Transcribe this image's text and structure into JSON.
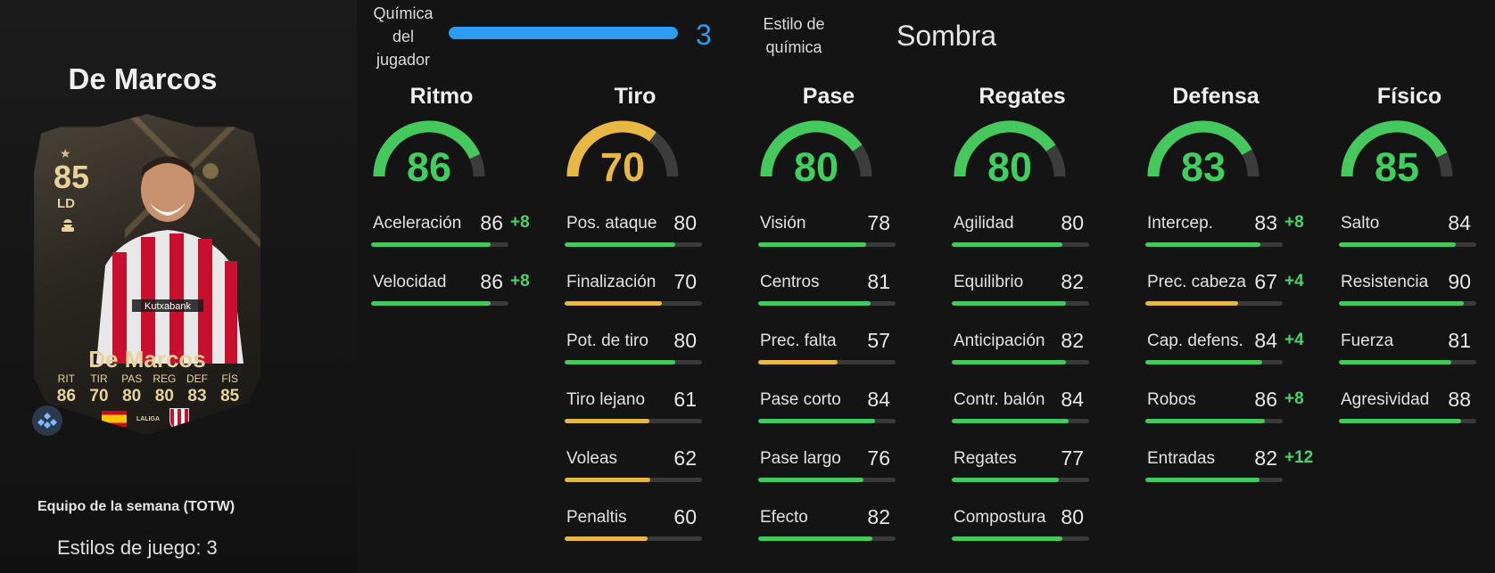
{
  "player": {
    "title": "De Marcos",
    "card": {
      "rating": "85",
      "position": "LD",
      "name": "De Marcos",
      "stat_labels": [
        "RIT",
        "TIR",
        "PAS",
        "REG",
        "DEF",
        "FÍS"
      ],
      "stat_values": [
        "86",
        "70",
        "80",
        "80",
        "83",
        "85"
      ],
      "league": "LALIGA"
    },
    "team": "Equipo de la semana (TOTW)",
    "playstyles": "Estilos de juego: 3"
  },
  "chemistry": {
    "label": "Química del jugador",
    "value": "3",
    "fraction": 1.0,
    "style_label": "Estilo de química",
    "style_value": "Sombra"
  },
  "colors": {
    "green": "#45c95c",
    "yellow": "#e7b944",
    "blue": "#2e9cf2"
  },
  "columns": [
    {
      "title": "Ritmo",
      "rating": "86",
      "tone": "green",
      "stats": [
        {
          "name": "Aceleración",
          "value": "86",
          "boost": "+8",
          "tone": "green"
        },
        {
          "name": "Velocidad",
          "value": "86",
          "boost": "+8",
          "tone": "green"
        }
      ]
    },
    {
      "title": "Tiro",
      "rating": "70",
      "tone": "yellow",
      "stats": [
        {
          "name": "Pos. ataque",
          "value": "80",
          "boost": "",
          "tone": "green"
        },
        {
          "name": "Finalización",
          "value": "70",
          "boost": "",
          "tone": "yellow"
        },
        {
          "name": "Pot. de tiro",
          "value": "80",
          "boost": "",
          "tone": "green"
        },
        {
          "name": "Tiro lejano",
          "value": "61",
          "boost": "",
          "tone": "yellow"
        },
        {
          "name": "Voleas",
          "value": "62",
          "boost": "",
          "tone": "yellow"
        },
        {
          "name": "Penaltis",
          "value": "60",
          "boost": "",
          "tone": "yellow"
        }
      ]
    },
    {
      "title": "Pase",
      "rating": "80",
      "tone": "green",
      "stats": [
        {
          "name": "Visión",
          "value": "78",
          "boost": "",
          "tone": "green"
        },
        {
          "name": "Centros",
          "value": "81",
          "boost": "",
          "tone": "green"
        },
        {
          "name": "Prec. falta",
          "value": "57",
          "boost": "",
          "tone": "yellow"
        },
        {
          "name": "Pase corto",
          "value": "84",
          "boost": "",
          "tone": "green"
        },
        {
          "name": "Pase largo",
          "value": "76",
          "boost": "",
          "tone": "green"
        },
        {
          "name": "Efecto",
          "value": "82",
          "boost": "",
          "tone": "green"
        }
      ]
    },
    {
      "title": "Regates",
      "rating": "80",
      "tone": "green",
      "stats": [
        {
          "name": "Agilidad",
          "value": "80",
          "boost": "",
          "tone": "green"
        },
        {
          "name": "Equilibrio",
          "value": "82",
          "boost": "",
          "tone": "green"
        },
        {
          "name": "Anticipación",
          "value": "82",
          "boost": "",
          "tone": "green"
        },
        {
          "name": "Contr. balón",
          "value": "84",
          "boost": "",
          "tone": "green"
        },
        {
          "name": "Regates",
          "value": "77",
          "boost": "",
          "tone": "green"
        },
        {
          "name": "Compostura",
          "value": "80",
          "boost": "",
          "tone": "green"
        }
      ]
    },
    {
      "title": "Defensa",
      "rating": "83",
      "tone": "green",
      "stats": [
        {
          "name": "Intercep.",
          "value": "83",
          "boost": "+8",
          "tone": "green"
        },
        {
          "name": "Prec. cabeza",
          "value": "67",
          "boost": "+4",
          "tone": "yellow"
        },
        {
          "name": "Cap. defens.",
          "value": "84",
          "boost": "+4",
          "tone": "green"
        },
        {
          "name": "Robos",
          "value": "86",
          "boost": "+8",
          "tone": "green"
        },
        {
          "name": "Entradas",
          "value": "82",
          "boost": "+12",
          "tone": "green"
        }
      ]
    },
    {
      "title": "Físico",
      "rating": "85",
      "tone": "green",
      "stats": [
        {
          "name": "Salto",
          "value": "84",
          "boost": "",
          "tone": "green"
        },
        {
          "name": "Resistencia",
          "value": "90",
          "boost": "",
          "tone": "green"
        },
        {
          "name": "Fuerza",
          "value": "81",
          "boost": "",
          "tone": "green"
        },
        {
          "name": "Agresividad",
          "value": "88",
          "boost": "",
          "tone": "green"
        }
      ]
    }
  ]
}
